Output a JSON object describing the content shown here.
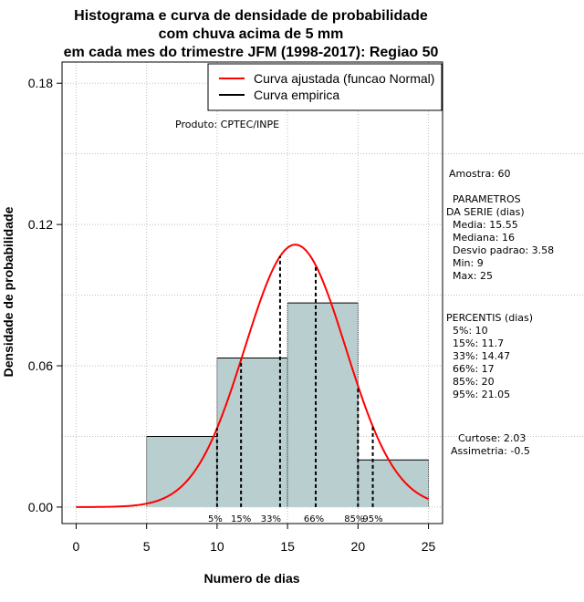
{
  "chart_data": {
    "type": "bar",
    "title_lines": [
      "Histograma e curva de densidade de probabilidade",
      "com chuva acima de 5 mm",
      "em cada mes do trimestre JFM (1998-2017): Regiao 50"
    ],
    "xlabel": "Numero de dias",
    "ylabel": "Densidade de probabilidade",
    "xlim": [
      -1,
      26
    ],
    "ylim": [
      -0.007,
      0.189
    ],
    "x_ticks": [
      0,
      5,
      10,
      15,
      20,
      25
    ],
    "y_ticks": [
      0.0,
      0.06,
      0.12,
      0.18
    ],
    "x_tick_labels": [
      "0",
      "5",
      "10",
      "15",
      "20",
      "25"
    ],
    "y_tick_labels": [
      "0.00",
      "0.06",
      "0.12",
      "0.18"
    ],
    "bins": [
      {
        "from": 5,
        "to": 10,
        "density": 0.03
      },
      {
        "from": 10,
        "to": 15,
        "density": 0.0633
      },
      {
        "from": 15,
        "to": 20,
        "density": 0.0867
      },
      {
        "from": 20,
        "to": 25,
        "density": 0.02
      }
    ],
    "normal_fit": {
      "mean": 15.55,
      "sd": 3.58,
      "x_from": 0,
      "x_to": 25
    },
    "percentile_lines": [
      {
        "label": "5%",
        "value": 10
      },
      {
        "label": "15%",
        "value": 11.7
      },
      {
        "label": "33%",
        "value": 14.47
      },
      {
        "label": "66%",
        "value": 17
      },
      {
        "label": "85%",
        "value": 20
      },
      {
        "label": "95%",
        "value": 21.05
      }
    ],
    "legend": {
      "position": "top-right",
      "entries": [
        {
          "label": "Curva ajustada (funcao Normal)",
          "color": "#ff0000"
        },
        {
          "label": "Curva empirica",
          "color": "#000000"
        }
      ]
    },
    "annotation": "Produto: CPTEC/INPE",
    "grid": true,
    "colors": {
      "bar_fill": "#b9cfcf",
      "curve": "#ff0000",
      "grid": "#bebebe"
    }
  },
  "stats_panel": {
    "sample": "Amostra: 60",
    "params_title_1": "PARAMETROS",
    "params_title_2": "DA SERIE (dias)",
    "params": [
      "Media: 15.55",
      "Mediana: 16",
      "Desvio padrao: 3.58",
      "Min: 9",
      "Max: 25"
    ],
    "percentis_title": "PERCENTIS (dias)",
    "percentis": [
      "5%: 10",
      "15%: 11.7",
      "33%: 14.47",
      "66%: 17",
      "85%: 20",
      "95%: 21.05"
    ],
    "curtose": "Curtose: 2.03",
    "assimetria": "Assimetria: -0.5"
  }
}
